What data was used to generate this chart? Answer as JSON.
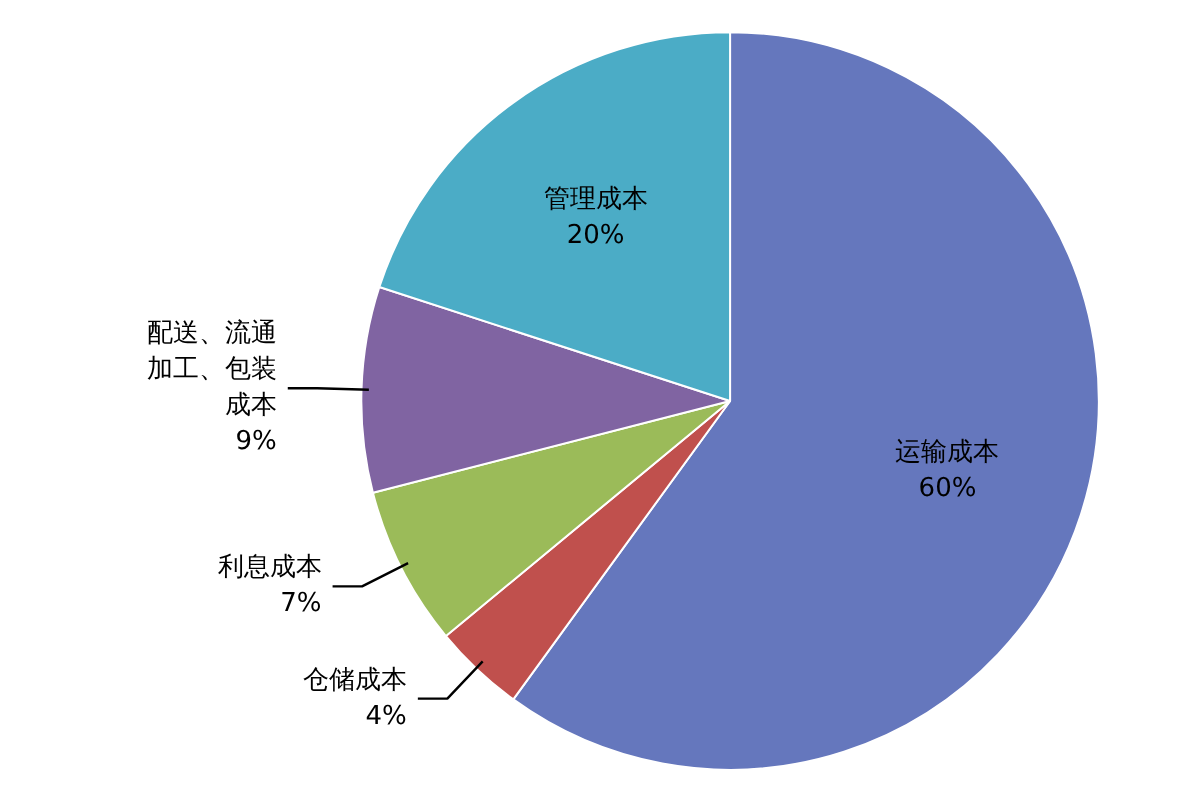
{
  "chart_data": {
    "type": "pie",
    "categories": [
      "运输成本",
      "仓储成本",
      "利息成本",
      "配送、流通加工、包装成本",
      "管理成本"
    ],
    "values": [
      60,
      4,
      7,
      9,
      20
    ],
    "value_labels": [
      "60%",
      "4%",
      "7%",
      "9%",
      "20%"
    ],
    "colors": [
      "#6577bd",
      "#c0504d",
      "#9bbb59",
      "#8064a2",
      "#4bacc6"
    ],
    "legend": false
  }
}
